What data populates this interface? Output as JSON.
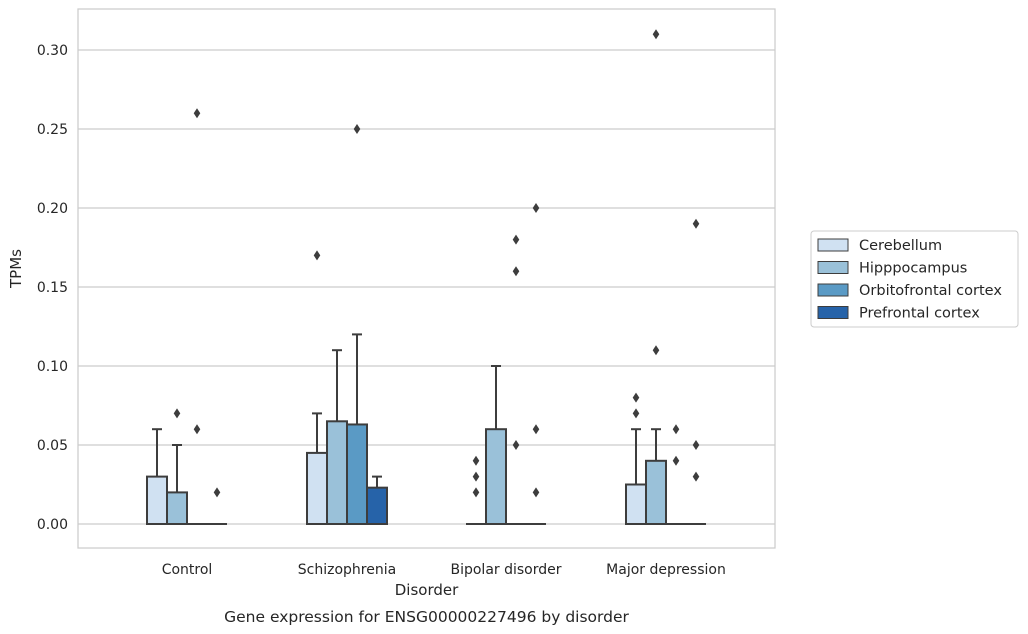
{
  "caption": "Gene expression for ENSG00000227496 by disorder",
  "chart_data": {
    "type": "box",
    "xlabel": "Disorder",
    "ylabel": "TPMs",
    "ylim": [
      -0.015,
      0.325
    ],
    "y_ticks": [
      0.0,
      0.05,
      0.1,
      0.15,
      0.2,
      0.25,
      0.3
    ],
    "y_tick_labels": [
      "0.00",
      "0.05",
      "0.10",
      "0.15",
      "0.20",
      "0.25",
      "0.30"
    ],
    "categories": [
      "Control",
      "Schizophrenia",
      "Bipolar disorder",
      "Major depression"
    ],
    "grid": "horizontal",
    "legend_position": "right",
    "series": [
      {
        "name": "Cerebellum",
        "color": "#d0e1f2",
        "boxes": [
          {
            "q1": 0.0,
            "median": 0.0,
            "q3": 0.03,
            "whisker_low": 0.0,
            "whisker_high": 0.06,
            "outliers": []
          },
          {
            "q1": 0.0,
            "median": 0.0,
            "q3": 0.045,
            "whisker_low": 0.0,
            "whisker_high": 0.07,
            "outliers": [
              0.17
            ]
          },
          {
            "q1": 0.0,
            "median": 0.0,
            "q3": 0.0,
            "whisker_low": 0.0,
            "whisker_high": 0.0,
            "outliers": [
              0.02,
              0.03,
              0.04
            ]
          },
          {
            "q1": 0.0,
            "median": 0.0,
            "q3": 0.025,
            "whisker_low": 0.0,
            "whisker_high": 0.06,
            "outliers": [
              0.07,
              0.08
            ]
          }
        ]
      },
      {
        "name": "Hipppocampus",
        "color": "#9ac1d9",
        "boxes": [
          {
            "q1": 0.0,
            "median": 0.0,
            "q3": 0.02,
            "whisker_low": 0.0,
            "whisker_high": 0.05,
            "outliers": [
              0.07
            ]
          },
          {
            "q1": 0.0,
            "median": 0.0,
            "q3": 0.065,
            "whisker_low": 0.0,
            "whisker_high": 0.11,
            "outliers": []
          },
          {
            "q1": 0.0,
            "median": 0.0,
            "q3": 0.06,
            "whisker_low": 0.0,
            "whisker_high": 0.1,
            "outliers": []
          },
          {
            "q1": 0.0,
            "median": 0.0,
            "q3": 0.04,
            "whisker_low": 0.0,
            "whisker_high": 0.06,
            "outliers": [
              0.11,
              0.31
            ]
          }
        ]
      },
      {
        "name": "Orbitofrontal cortex",
        "color": "#5a9ac5",
        "boxes": [
          {
            "q1": 0.0,
            "median": 0.0,
            "q3": 0.0,
            "whisker_low": 0.0,
            "whisker_high": 0.0,
            "outliers": [
              0.06,
              0.26
            ]
          },
          {
            "q1": 0.0,
            "median": 0.0,
            "q3": 0.063,
            "whisker_low": 0.0,
            "whisker_high": 0.12,
            "outliers": [
              0.25
            ]
          },
          {
            "q1": 0.0,
            "median": 0.0,
            "q3": 0.0,
            "whisker_low": 0.0,
            "whisker_high": 0.0,
            "outliers": [
              0.05,
              0.16,
              0.18
            ]
          },
          {
            "q1": 0.0,
            "median": 0.0,
            "q3": 0.0,
            "whisker_low": 0.0,
            "whisker_high": 0.0,
            "outliers": [
              0.04,
              0.06
            ]
          }
        ]
      },
      {
        "name": "Prefrontal cortex",
        "color": "#2663a9",
        "boxes": [
          {
            "q1": 0.0,
            "median": 0.0,
            "q3": 0.0,
            "whisker_low": 0.0,
            "whisker_high": 0.0,
            "outliers": [
              0.02
            ]
          },
          {
            "q1": 0.0,
            "median": 0.0,
            "q3": 0.023,
            "whisker_low": 0.0,
            "whisker_high": 0.03,
            "outliers": []
          },
          {
            "q1": 0.0,
            "median": 0.0,
            "q3": 0.0,
            "whisker_low": 0.0,
            "whisker_high": 0.0,
            "outliers": [
              0.02,
              0.06,
              0.2
            ]
          },
          {
            "q1": 0.0,
            "median": 0.0,
            "q3": 0.0,
            "whisker_low": 0.0,
            "whisker_high": 0.0,
            "outliers": [
              0.03,
              0.05,
              0.19
            ]
          }
        ]
      }
    ]
  }
}
